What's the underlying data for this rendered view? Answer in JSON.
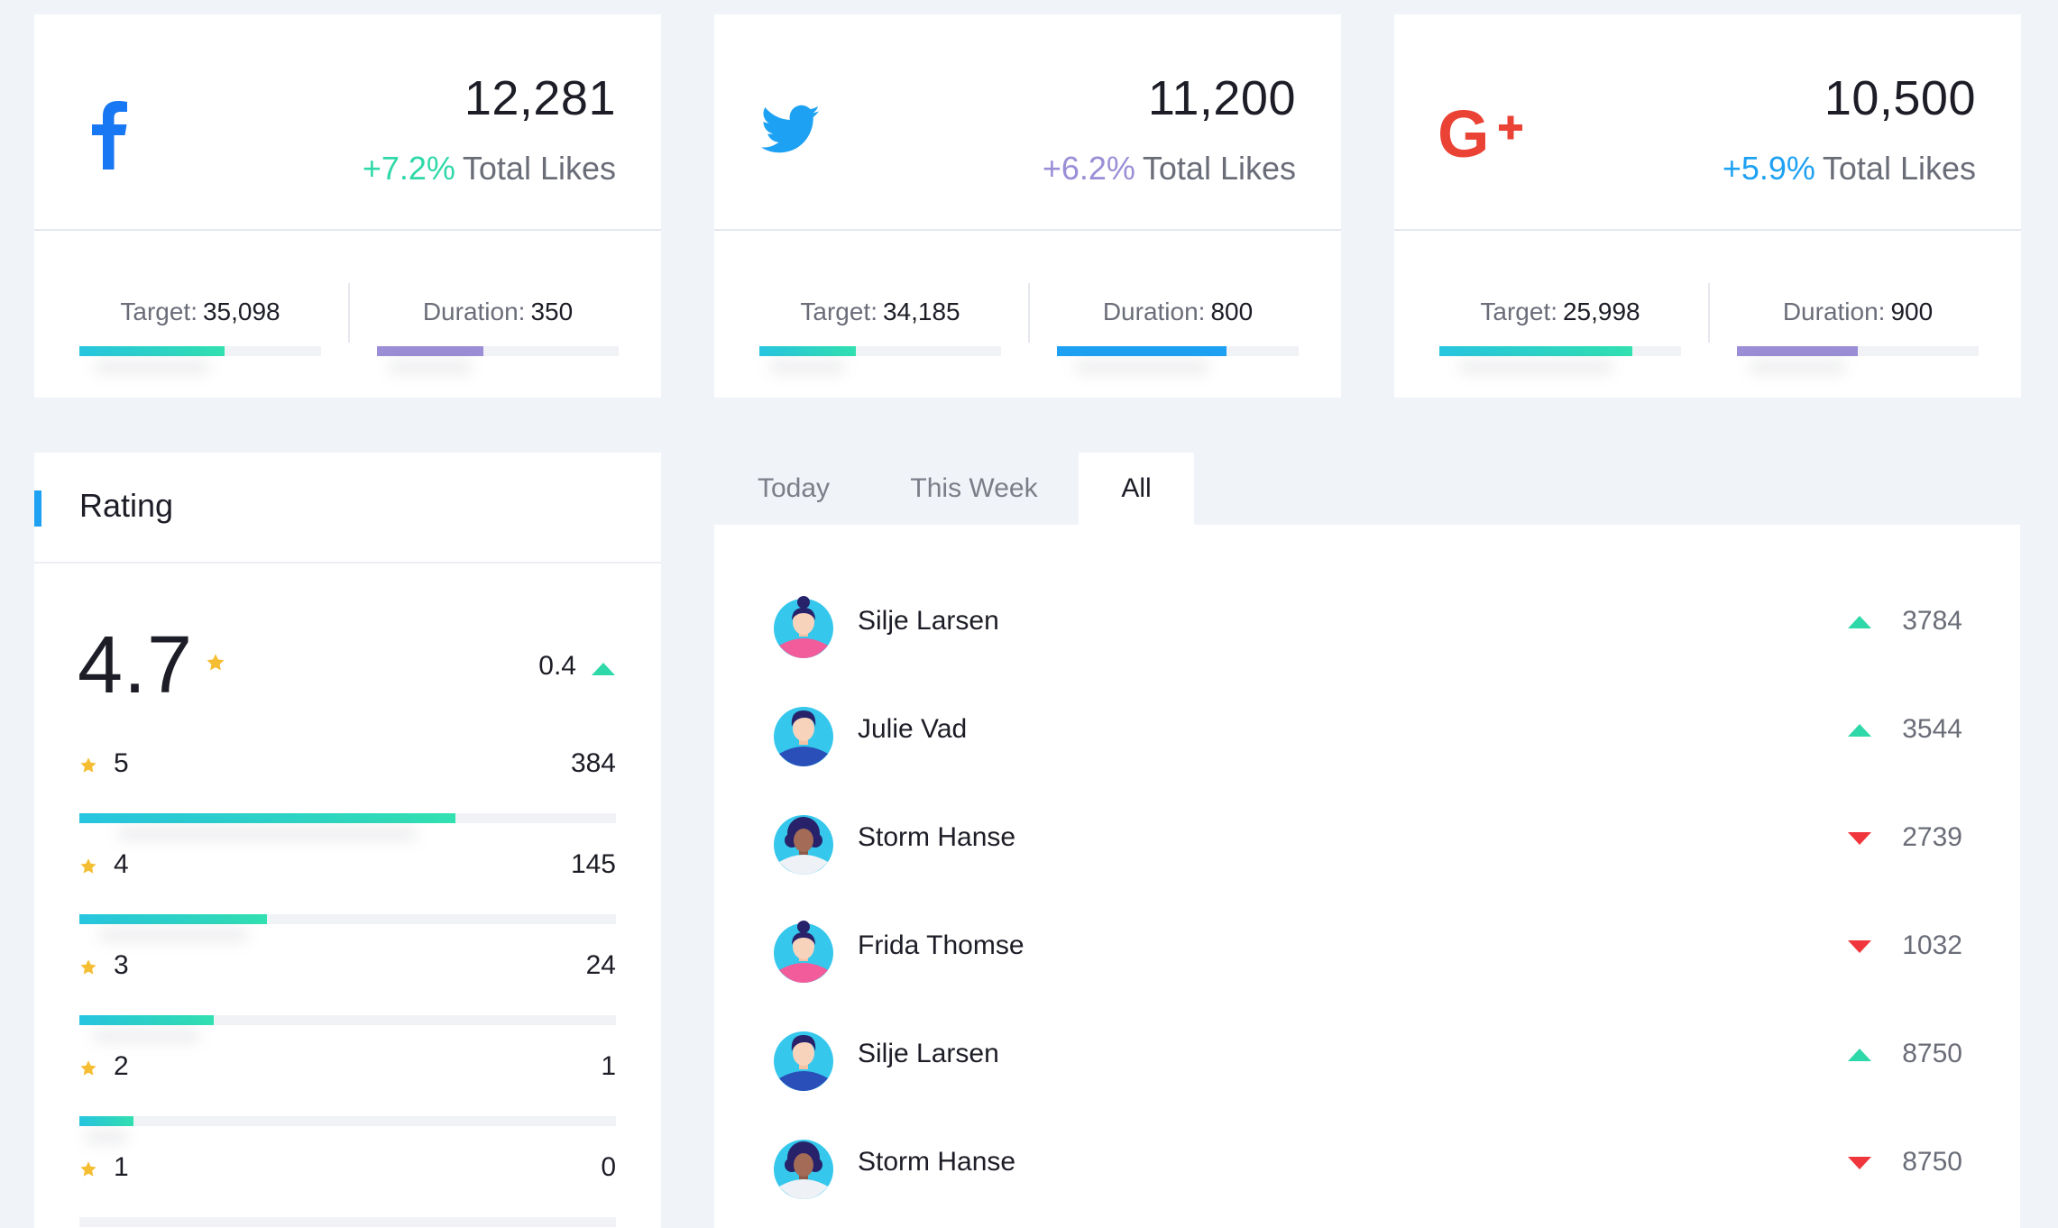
{
  "colors": {
    "facebook": "#1877f2",
    "twitter": "#1da1f2",
    "google": "#ea4335",
    "teal_pct": "#2fd8a8",
    "purple_pct": "#9b8ed6",
    "blue_pct": "#1ea1f2",
    "star": "#f5bd32",
    "up": "#2fd8a8",
    "down": "#f0363c"
  },
  "social": [
    {
      "icon": "facebook-icon",
      "value": "12,281",
      "change": "+7.2%",
      "caption": "Total Likes",
      "target_label": "Target:",
      "target_value": "35,098",
      "target_progress": 0.6,
      "duration_label": "Duration:",
      "duration_value": "350",
      "duration_progress": 0.44
    },
    {
      "icon": "twitter-icon",
      "value": "11,200",
      "change": "+6.2%",
      "caption": "Total Likes",
      "target_label": "Target:",
      "target_value": "34,185",
      "target_progress": 0.4,
      "duration_label": "Duration:",
      "duration_value": "800",
      "duration_progress": 0.7
    },
    {
      "icon": "google-plus-icon",
      "value": "10,500",
      "change": "+5.9%",
      "caption": "Total Likes",
      "target_label": "Target:",
      "target_value": "25,998",
      "target_progress": 0.8,
      "duration_label": "Duration:",
      "duration_value": "900",
      "duration_progress": 0.5
    }
  ],
  "rating": {
    "title": "Rating",
    "score": "4.7",
    "delta": "0.4",
    "rows": [
      {
        "label": "5",
        "count": "384",
        "progress": 0.7
      },
      {
        "label": "4",
        "count": "145",
        "progress": 0.35
      },
      {
        "label": "3",
        "count": "24",
        "progress": 0.25
      },
      {
        "label": "2",
        "count": "1",
        "progress": 0.1
      },
      {
        "label": "1",
        "count": "0",
        "progress": 0
      }
    ]
  },
  "tabs": [
    {
      "label": "Today",
      "active": false
    },
    {
      "label": "This Week",
      "active": false
    },
    {
      "label": "All",
      "active": true
    }
  ],
  "people": [
    {
      "name": "Silje Larsen",
      "score": "3784",
      "trend": "up",
      "avatar": "woman-bun"
    },
    {
      "name": "Julie Vad",
      "score": "3544",
      "trend": "up",
      "avatar": "man-blue"
    },
    {
      "name": "Storm Hanse",
      "score": "2739",
      "trend": "down",
      "avatar": "woman-curly"
    },
    {
      "name": "Frida Thomse",
      "score": "1032",
      "trend": "down",
      "avatar": "woman-bun"
    },
    {
      "name": "Silje Larsen",
      "score": "8750",
      "trend": "up",
      "avatar": "man-blue"
    },
    {
      "name": "Storm Hanse",
      "score": "8750",
      "trend": "down",
      "avatar": "woman-curly"
    }
  ]
}
